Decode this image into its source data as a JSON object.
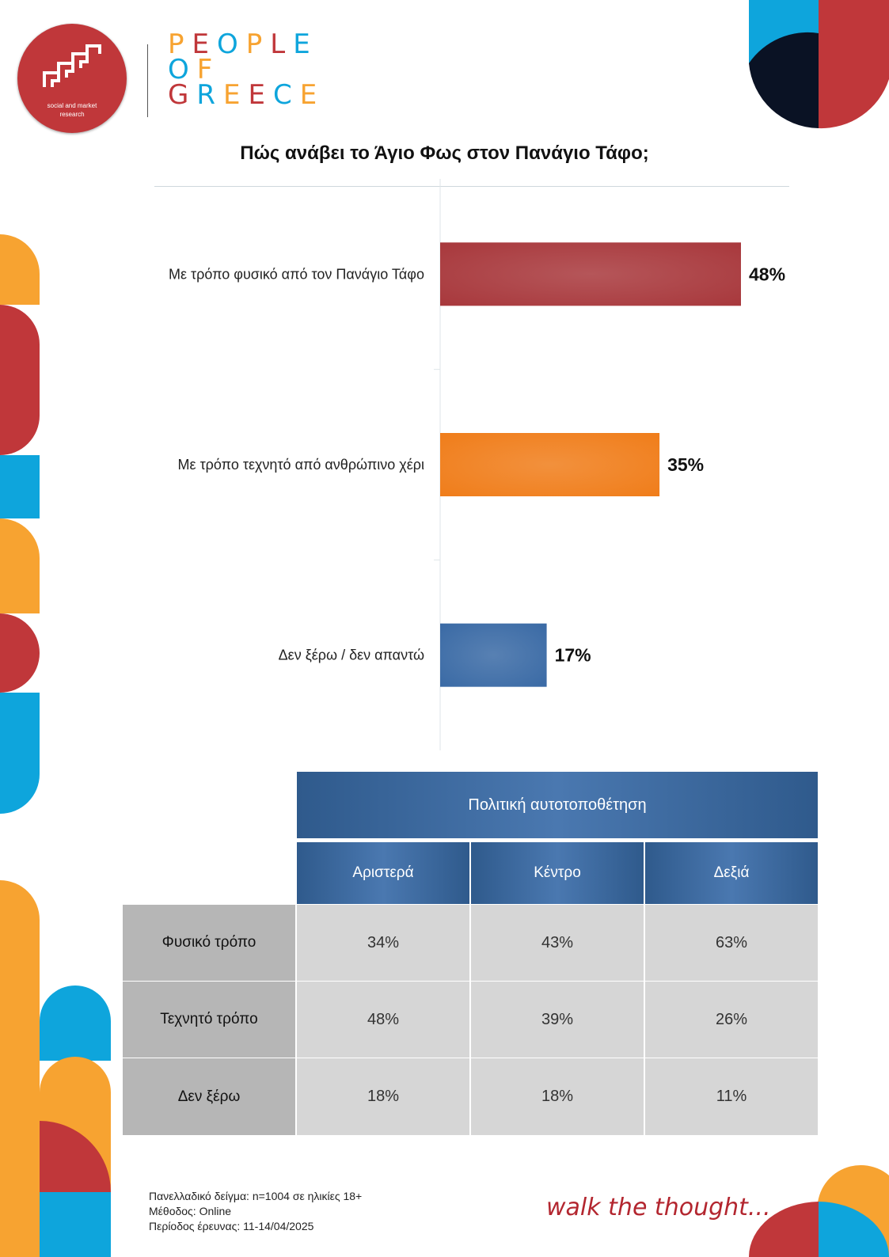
{
  "brand": {
    "logo_line1": "social and market",
    "logo_line2": "research",
    "wordmark_lines": [
      "PEOPLE",
      "OF",
      "GREECE"
    ],
    "slogan": "walk the thought...",
    "colors": {
      "red": "#c0373a",
      "orange": "#f7a331",
      "blue": "#0ea5dc",
      "navy": "#0a1224"
    }
  },
  "chart_data": {
    "type": "bar",
    "orientation": "horizontal",
    "title": "Πώς ανάβει το Άγιο Φως στον Πανάγιο Τάφο;",
    "categories": [
      "Με τρόπο φυσικό από τον Πανάγιο Τάφο",
      "Με τρόπο τεχνητό από ανθρώπινο χέρι",
      "Δεν ξέρω / δεν απαντώ"
    ],
    "values": [
      48,
      35,
      17
    ],
    "value_labels": [
      "48%",
      "35%",
      "17%"
    ],
    "bar_colors": [
      "#a8383c",
      "#f07d1a",
      "#3a6aa5"
    ],
    "xlim": [
      0,
      50
    ],
    "grid": false
  },
  "table": {
    "title": "Πολιτική αυτοτοποθέτηση",
    "columns": [
      "Αριστερά",
      "Κέντρο",
      "Δεξιά"
    ],
    "rows": [
      {
        "label": "Φυσικό τρόπο",
        "values": [
          "34%",
          "43%",
          "63%"
        ]
      },
      {
        "label": "Τεχνητό τρόπο",
        "values": [
          "48%",
          "39%",
          "26%"
        ]
      },
      {
        "label": "Δεν ξέρω",
        "values": [
          "18%",
          "18%",
          "11%"
        ]
      }
    ]
  },
  "footer": {
    "lines": [
      "Πανελλαδικό δείγμα: n=1004 σε ηλικίες 18+",
      "Μέθοδος: Online",
      "Περίοδος έρευνας: 11-14/04/2025"
    ]
  }
}
